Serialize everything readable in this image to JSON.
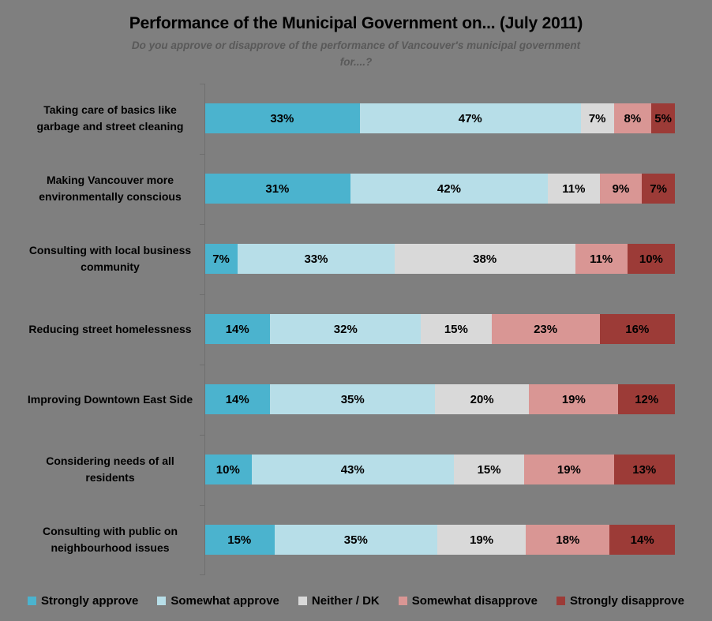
{
  "chart_data": {
    "type": "bar",
    "variant": "100-percent-stacked-horizontal",
    "title": "Performance of the Municipal Government on... (July 2011)",
    "subtitle": "Do you approve or disapprove of the performance of Vancouver's municipal government for....?",
    "subtitle_lines": [
      "Do you approve or disapprove of the performance of Vancouver's municipal government",
      "for....?"
    ],
    "categories": [
      "Taking care of basics like garbage and street cleaning",
      "Making Vancouver more environmentally conscious",
      "Consulting with local business community",
      "Reducing street homelessness",
      "Improving Downtown East Side",
      "Considering needs of all residents",
      "Consulting with public on neighbourhood issues"
    ],
    "series": [
      {
        "name": "Strongly approve",
        "color": "#4bb3ce",
        "values": [
          33,
          31,
          7,
          14,
          14,
          10,
          15
        ]
      },
      {
        "name": "Somewhat approve",
        "color": "#b7dee8",
        "values": [
          47,
          42,
          33,
          32,
          35,
          43,
          35
        ]
      },
      {
        "name": "Neither / DK",
        "color": "#d9d9d9",
        "values": [
          7,
          11,
          38,
          15,
          20,
          15,
          19
        ]
      },
      {
        "name": "Somewhat disapprove",
        "color": "#d99694",
        "values": [
          8,
          9,
          11,
          23,
          19,
          19,
          18
        ]
      },
      {
        "name": "Strongly disapprove",
        "color": "#9c3b37",
        "values": [
          5,
          7,
          10,
          16,
          12,
          13,
          14
        ]
      }
    ],
    "value_suffix": "%",
    "legend_position": "bottom",
    "xlim": [
      0,
      100
    ],
    "grid": false,
    "background_color": "#7f7f7f",
    "axis_color": "#6e6e6e",
    "title_color": "#000000",
    "subtitle_color": "#595959"
  }
}
